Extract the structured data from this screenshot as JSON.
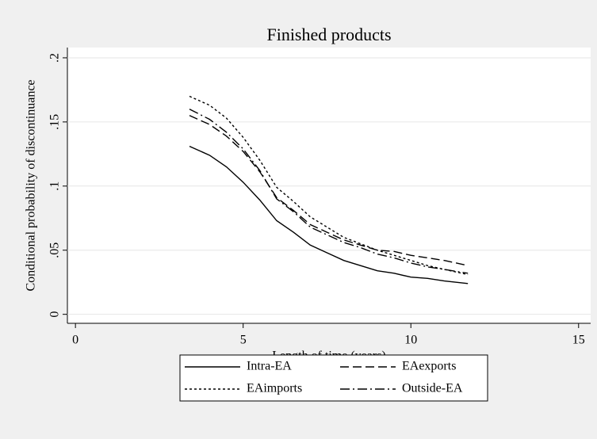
{
  "chart_data": {
    "type": "line",
    "title": "Finished products",
    "x_label": "Length of time (years)",
    "y_label": "Conditional probability of discontinuance",
    "x": [
      3.4,
      4,
      4.5,
      5,
      5.5,
      6,
      6.5,
      7,
      7.5,
      8,
      8.5,
      9,
      9.5,
      10,
      10.5,
      11,
      11.7
    ],
    "series": [
      {
        "name": "Intra-EA",
        "color": "#000000",
        "dash": "solid",
        "values": [
          0.131,
          0.124,
          0.115,
          0.103,
          0.089,
          0.073,
          0.064,
          0.054,
          0.048,
          0.042,
          0.038,
          0.034,
          0.032,
          0.029,
          0.028,
          0.026,
          0.024
        ]
      },
      {
        "name": "EAexports",
        "color": "#000000",
        "dash": "dash",
        "values": [
          0.155,
          0.148,
          0.139,
          0.127,
          0.111,
          0.091,
          0.081,
          0.07,
          0.064,
          0.058,
          0.054,
          0.05,
          0.049,
          0.046,
          0.044,
          0.042,
          0.038
        ]
      },
      {
        "name": "EAimports",
        "color": "#000000",
        "dash": "dot",
        "values": [
          0.17,
          0.163,
          0.153,
          0.138,
          0.12,
          0.099,
          0.088,
          0.076,
          0.068,
          0.06,
          0.055,
          0.05,
          0.046,
          0.042,
          0.038,
          0.035,
          0.031
        ]
      },
      {
        "name": "Outside-EA",
        "color": "#000000",
        "dash": "dashdot",
        "values": [
          0.16,
          0.152,
          0.142,
          0.129,
          0.112,
          0.09,
          0.08,
          0.068,
          0.062,
          0.056,
          0.052,
          0.047,
          0.044,
          0.04,
          0.037,
          0.035,
          0.032
        ]
      }
    ],
    "xlim": [
      -0.24,
      15.36
    ],
    "xticks": [
      0,
      5,
      10,
      15
    ],
    "ylim": [
      -0.007,
      0.208
    ],
    "yticks": [
      0,
      {
        "value": 0.05,
        "label": ".05"
      },
      {
        "value": 0.1,
        "label": ".1"
      },
      {
        "value": 0.15,
        "label": ".15"
      },
      {
        "value": 0.2,
        "label": ".2"
      }
    ],
    "grid": true,
    "legend": "bottom"
  }
}
